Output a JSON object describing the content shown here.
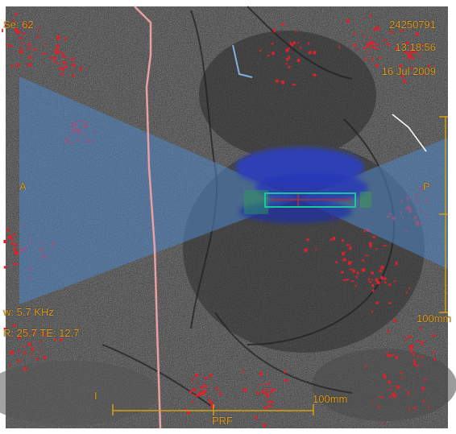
{
  "overlay": {
    "series_label": "Se: 62",
    "patient_id": "24250791",
    "time": "13:18:56",
    "date": "16 Jul 2009",
    "orient_left": "A",
    "orient_right": "P",
    "orient_bottom": "I",
    "bandwidth": "w: 5.7 KHz",
    "timing": "R: 25.7 TE: 12.7",
    "scale_vertical": "100mm",
    "scale_horizontal": "100mm",
    "encoding_label": "PRF"
  },
  "colors": {
    "overlay_text": "#e3a020",
    "sat_band": "#4f86c6",
    "noise_dots": "#e0202a",
    "vessel_line": "#e8a0a0",
    "roi_box": "#19c7a0",
    "heat_blob": "#2a3fc8",
    "background": "#3f3f3f"
  },
  "icons": {
    "crosshair": "crosshair-icon"
  }
}
